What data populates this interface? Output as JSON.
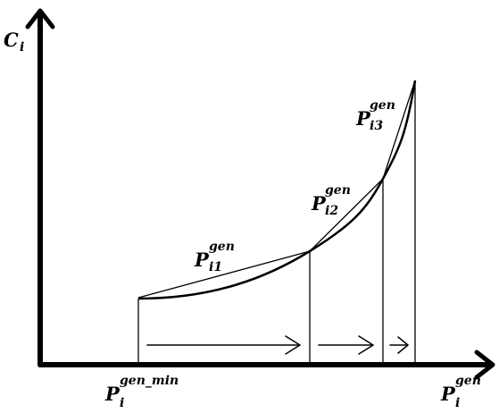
{
  "axes": {
    "y_label": {
      "main": "C",
      "sub": "i"
    },
    "x_label": {
      "main": "P",
      "sup": "gen",
      "sub": "i"
    }
  },
  "segments": [
    {
      "main": "P",
      "sup": "gen",
      "sub": "i1"
    },
    {
      "main": "P",
      "sup": "gen",
      "sub": "i2"
    },
    {
      "main": "P",
      "sup": "gen",
      "sub": "i3"
    }
  ],
  "x_min_label": {
    "main": "P",
    "sup": "gen_min",
    "sub": "i"
  }
}
